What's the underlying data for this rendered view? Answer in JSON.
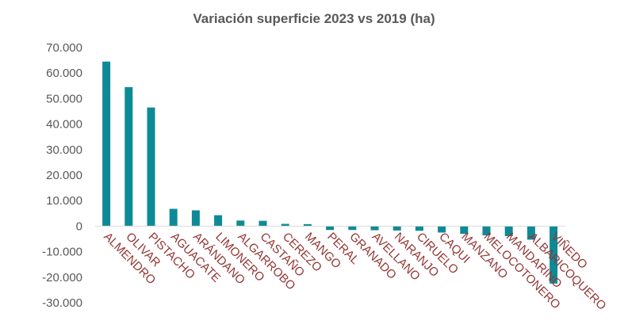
{
  "chart_data": {
    "type": "bar",
    "title": "Variación superficie 2023 vs 2019 (ha)",
    "xlabel": "",
    "ylabel": "",
    "ylim": [
      -30000,
      70000
    ],
    "yticks": [
      "70.000",
      "60.000",
      "50.000",
      "40.000",
      "30.000",
      "20.000",
      "10.000",
      "0",
      "-10.000",
      "-20.000",
      "-30.000"
    ],
    "ytick_values": [
      70000,
      60000,
      50000,
      40000,
      30000,
      20000,
      10000,
      0,
      -10000,
      -20000,
      -30000
    ],
    "grid": false,
    "legend": "none",
    "bar_color": "#0e8a96",
    "label_color": "#943634",
    "categories": [
      "ALMENDRO",
      "OLIVAR",
      "PISTACHO",
      "AGUACATE",
      "ARÁNDANO",
      "LIMONERO",
      "ALGARROBO",
      "CASTAÑO",
      "CEREZO",
      "MANGO",
      "PERAL",
      "GRANADO",
      "AVELLANO",
      "NARANJO",
      "CIRUELO",
      "CAQUI",
      "MANZANO",
      "MELOCOTONERO",
      "MANDARINO",
      "ALBARICOQUERO",
      "VIÑEDO"
    ],
    "values": [
      64500,
      54500,
      46500,
      6800,
      6200,
      4300,
      2200,
      2100,
      900,
      800,
      -1500,
      -1500,
      -1600,
      -1700,
      -1800,
      -2500,
      -3000,
      -3600,
      -3900,
      -5300,
      -22500
    ]
  }
}
